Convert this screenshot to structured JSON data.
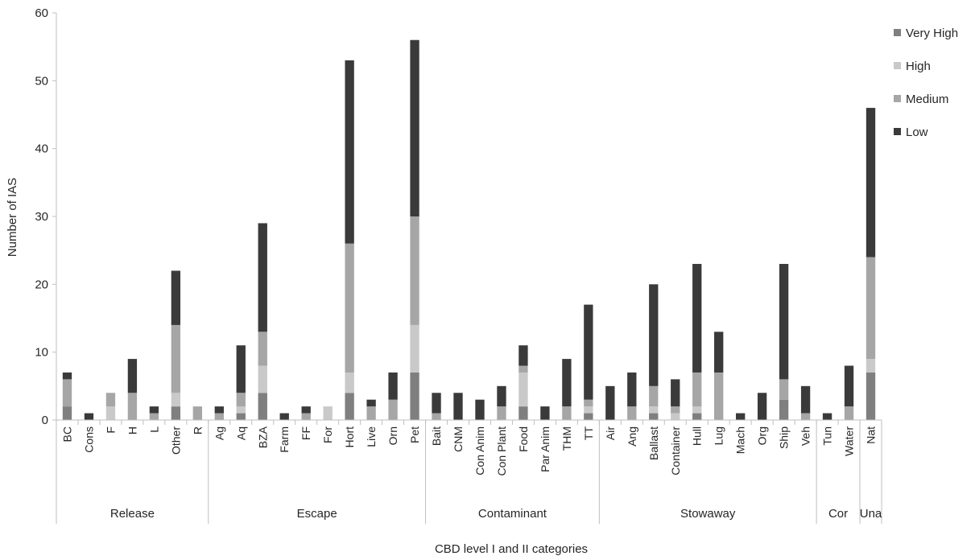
{
  "colors": {
    "very_high": "#7f7f7f",
    "high": "#c9c9c9",
    "medium": "#a6a6a6",
    "low": "#3a3a3a",
    "axis": "#bfbfbf",
    "text": "#262626"
  },
  "chart_data": {
    "type": "bar",
    "stacked": true,
    "title": "",
    "xlabel": "CBD level I and II categories",
    "ylabel": "Number of IAS",
    "ylim": [
      0,
      60
    ],
    "yticks": [
      0,
      10,
      20,
      30,
      40,
      50,
      60
    ],
    "grid": false,
    "legend_position": "right",
    "categories": [
      "BC",
      "Cons",
      "F",
      "H",
      "L",
      "Other",
      "R",
      "Ag",
      "Aq",
      "BZA",
      "Farm",
      "FF",
      "For",
      "Hort",
      "Live",
      "Orn",
      "Pet",
      "Bait",
      "CNM",
      "Con Anim",
      "Con Plant",
      "Food",
      "Par Anim",
      "THM",
      "TT",
      "Air",
      "Ang",
      "Ballast",
      "Container",
      "Hull",
      "Lug",
      "Mach",
      "Org",
      "Ship",
      "Veh",
      "Tun",
      "Water",
      "Nat"
    ],
    "groups": [
      {
        "label": "Release",
        "start": 0,
        "end": 6
      },
      {
        "label": "Escape",
        "start": 7,
        "end": 16
      },
      {
        "label": "Contaminant",
        "start": 17,
        "end": 24
      },
      {
        "label": "Stowaway",
        "start": 25,
        "end": 34
      },
      {
        "label": "Cor",
        "start": 35,
        "end": 36
      },
      {
        "label": "Una",
        "start": 37,
        "end": 37
      }
    ],
    "series": [
      {
        "name": "Very High",
        "key": "very_high",
        "values": [
          2,
          0,
          0,
          0,
          0,
          2,
          0,
          0,
          1,
          4,
          0,
          0,
          0,
          4,
          0,
          0,
          7,
          0,
          0,
          0,
          0,
          2,
          0,
          0,
          1,
          0,
          0,
          1,
          0,
          1,
          0,
          0,
          0,
          3,
          0,
          0,
          0,
          7
        ]
      },
      {
        "name": "High",
        "key": "high",
        "values": [
          0,
          0,
          2,
          0,
          0,
          2,
          0,
          0,
          1,
          4,
          0,
          0,
          2,
          3,
          0,
          0,
          7,
          0,
          0,
          0,
          0,
          5,
          0,
          0,
          1,
          0,
          0,
          1,
          1,
          1,
          0,
          0,
          0,
          0,
          0,
          0,
          0,
          2
        ]
      },
      {
        "name": "Medium",
        "key": "medium",
        "values": [
          4,
          0,
          2,
          4,
          1,
          10,
          2,
          1,
          2,
          5,
          0,
          1,
          0,
          19,
          2,
          3,
          16,
          1,
          0,
          0,
          2,
          1,
          0,
          2,
          1,
          0,
          2,
          3,
          1,
          5,
          7,
          0,
          0,
          3,
          1,
          0,
          2,
          15
        ]
      },
      {
        "name": "Low",
        "key": "low",
        "values": [
          1,
          1,
          0,
          5,
          1,
          8,
          0,
          1,
          7,
          16,
          1,
          1,
          0,
          27,
          1,
          4,
          26,
          3,
          4,
          3,
          3,
          3,
          2,
          7,
          14,
          5,
          5,
          15,
          4,
          16,
          6,
          1,
          4,
          17,
          4,
          1,
          6,
          22
        ]
      }
    ]
  }
}
